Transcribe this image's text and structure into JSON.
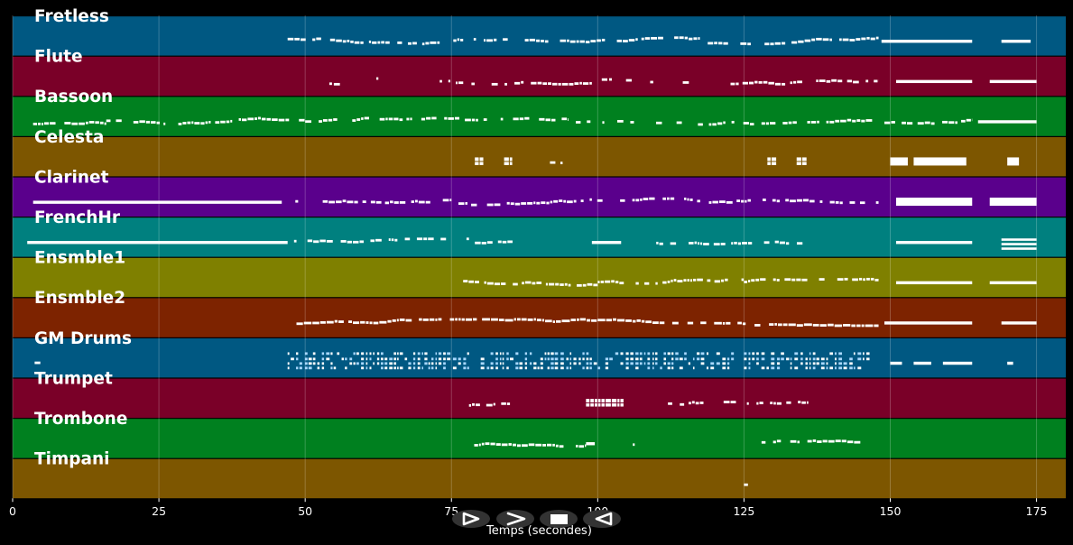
{
  "chart_data": {
    "type": "piano-roll",
    "xlabel": "Temps (secondes)",
    "xlim": [
      0,
      180
    ],
    "xticks": [
      0,
      25,
      50,
      75,
      100,
      125,
      150,
      175
    ],
    "grid": true,
    "tracks": [
      {
        "name": "Fretless",
        "color": "#005882",
        "segments": [
          [
            47,
            73,
            "dotted"
          ],
          [
            73,
            118,
            "dotted"
          ],
          [
            118,
            148,
            "dotted"
          ],
          [
            148.5,
            164,
            "solid"
          ],
          [
            169,
            174,
            "solid"
          ]
        ]
      },
      {
        "name": "Flute",
        "color": "#7a0028",
        "segments": [
          [
            48,
            50,
            "sparse"
          ],
          [
            52,
            58,
            "sparse"
          ],
          [
            60,
            66,
            "sparse"
          ],
          [
            68,
            74,
            "sparse"
          ],
          [
            74,
            99,
            "dotted"
          ],
          [
            99,
            117,
            "sparse"
          ],
          [
            117,
            122,
            "sparse"
          ],
          [
            122,
            148,
            "dotted"
          ],
          [
            151,
            164,
            "solid"
          ],
          [
            167,
            175,
            "solid"
          ]
        ]
      },
      {
        "name": "Bassoon",
        "color": "#00801f",
        "segments": [
          [
            3.5,
            16,
            "dense"
          ],
          [
            16,
            50,
            "dotted"
          ],
          [
            50,
            95,
            "dotted"
          ],
          [
            95,
            113,
            "sparse"
          ],
          [
            113,
            148,
            "dotted"
          ],
          [
            149,
            164,
            "dotted"
          ],
          [
            165,
            175,
            "solid"
          ]
        ]
      },
      {
        "name": "Celesta",
        "color": "#7d5600",
        "segments": [
          [
            79,
            80.5,
            "chord"
          ],
          [
            84,
            85.5,
            "chord"
          ],
          [
            89,
            94,
            "sparse"
          ],
          [
            129,
            130.5,
            "chord"
          ],
          [
            134,
            135,
            "chord"
          ],
          [
            138,
            145.5,
            "sparse"
          ],
          [
            150,
            153,
            "block"
          ],
          [
            154,
            163,
            "block"
          ],
          [
            170,
            172,
            "block"
          ]
        ]
      },
      {
        "name": "Clarinet",
        "color": "#5a008c",
        "segments": [
          [
            3.5,
            46,
            "solid"
          ],
          [
            47,
            53,
            "sparse"
          ],
          [
            53,
            75,
            "dotted"
          ],
          [
            75,
            99,
            "dotted"
          ],
          [
            99,
            118,
            "dotted"
          ],
          [
            118,
            148,
            "dotted"
          ],
          [
            151,
            164,
            "block"
          ],
          [
            167,
            175,
            "block"
          ]
        ]
      },
      {
        "name": "FrenchHr",
        "color": "#00807f",
        "segments": [
          [
            2.5,
            47,
            "solid"
          ],
          [
            47,
            78,
            "dotted"
          ],
          [
            79,
            85.5,
            "dotted"
          ],
          [
            99,
            104,
            "solid"
          ],
          [
            110,
            135,
            "dotted"
          ],
          [
            151,
            164,
            "solid"
          ],
          [
            169,
            175,
            "stack"
          ]
        ]
      },
      {
        "name": "Ensmble1",
        "color": "#7f8000",
        "segments": [
          [
            77,
            100,
            "dotted"
          ],
          [
            100,
            125,
            "dotted"
          ],
          [
            125,
            148,
            "dotted"
          ],
          [
            151,
            164,
            "solid"
          ],
          [
            167,
            175,
            "solid"
          ]
        ]
      },
      {
        "name": "Ensmble2",
        "color": "#7d2300",
        "segments": [
          [
            47,
            148,
            "dense"
          ],
          [
            149,
            164,
            "solid"
          ],
          [
            169,
            175,
            "solid"
          ]
        ]
      },
      {
        "name": "GM Drums",
        "color": "#005882",
        "segments": [
          [
            2.5,
            5,
            "sparse"
          ],
          [
            47,
            78,
            "drums"
          ],
          [
            80,
            100,
            "drums"
          ],
          [
            100,
            123,
            "drums"
          ],
          [
            125,
            146,
            "drums"
          ],
          [
            150,
            152,
            "solid"
          ],
          [
            154,
            157,
            "solid"
          ],
          [
            159,
            164,
            "solid"
          ],
          [
            170,
            171,
            "solid"
          ]
        ]
      },
      {
        "name": "Trumpet",
        "color": "#7a0028",
        "segments": [
          [
            78,
            82.5,
            "dotted"
          ],
          [
            83.5,
            86,
            "dotted"
          ],
          [
            98,
            104,
            "chord"
          ],
          [
            112,
            136,
            "dotted"
          ]
        ]
      },
      {
        "name": "Trombone",
        "color": "#00801f",
        "segments": [
          [
            78,
            98,
            "dotted"
          ],
          [
            98,
            99.5,
            "solid"
          ],
          [
            106,
            111,
            "sparse"
          ],
          [
            128,
            146,
            "dotted"
          ]
        ]
      },
      {
        "name": "Timpani",
        "color": "#7d5600",
        "segments": [
          [
            125,
            129,
            "sparse"
          ]
        ]
      }
    ]
  },
  "controls": [
    {
      "name": "play",
      "icon": "play-outline-icon"
    },
    {
      "name": "next",
      "icon": "chevron-right-icon"
    },
    {
      "name": "stop",
      "icon": "stop-square-icon"
    },
    {
      "name": "back",
      "icon": "chevron-left-icon"
    }
  ]
}
